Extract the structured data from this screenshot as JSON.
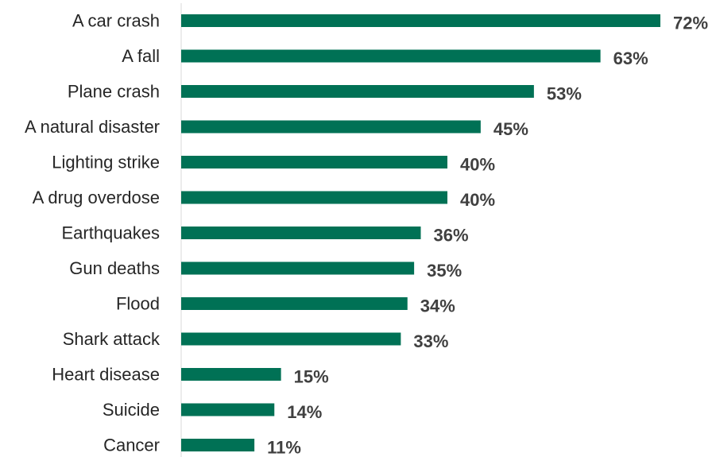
{
  "chart_data": {
    "type": "bar",
    "orientation": "horizontal",
    "title": "",
    "xlabel": "",
    "ylabel": "",
    "categories": [
      "A car crash",
      "A fall",
      "Plane crash",
      "A natural disaster",
      "Lighting strike",
      "A drug overdose",
      "Earthquakes",
      "Gun deaths",
      "Flood",
      "Shark attack",
      "Heart disease",
      "Suicide",
      "Cancer"
    ],
    "values": [
      72,
      63,
      53,
      45,
      40,
      40,
      36,
      35,
      34,
      33,
      15,
      14,
      11
    ],
    "value_labels": [
      "72%",
      "63%",
      "53%",
      "45%",
      "40%",
      "40%",
      "36%",
      "35%",
      "34%",
      "33%",
      "15%",
      "14%",
      "11%"
    ],
    "xlim": [
      0,
      72
    ],
    "grid": false,
    "legend": "none",
    "bar_color": "#007155",
    "axis_color": "#d9d9d9"
  }
}
